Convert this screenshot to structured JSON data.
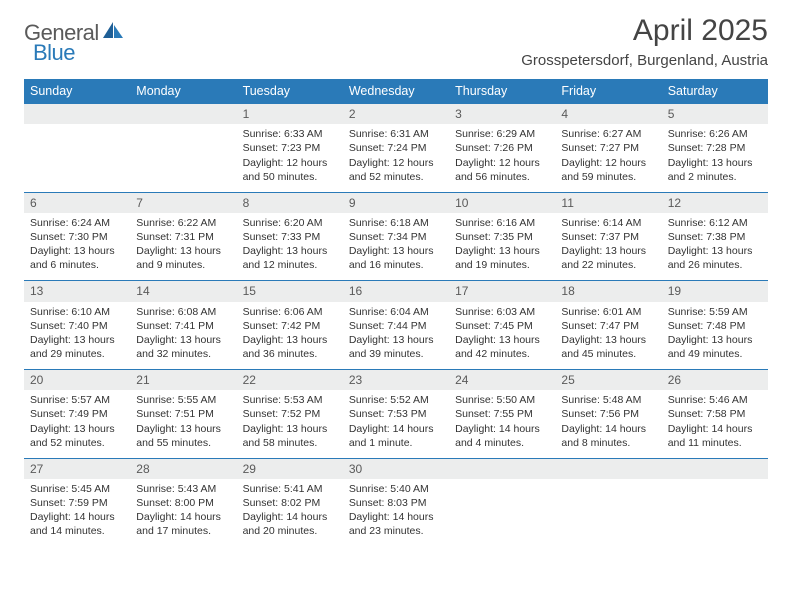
{
  "logo": {
    "word1": "General",
    "word2": "Blue"
  },
  "title": "April 2025",
  "location": "Grosspetersdorf, Burgenland, Austria",
  "colors": {
    "accent": "#2a7ab8",
    "header_bg": "#2a7ab8",
    "header_text": "#ffffff",
    "daynum_bg": "#eceded",
    "text": "#333333",
    "muted": "#5a5a5a",
    "page_bg": "#ffffff"
  },
  "typography": {
    "title_fontsize": 30,
    "location_fontsize": 15,
    "header_fontsize": 12.5,
    "cell_fontsize": 10.5,
    "logo_fontsize": 22
  },
  "weekdays": [
    "Sunday",
    "Monday",
    "Tuesday",
    "Wednesday",
    "Thursday",
    "Friday",
    "Saturday"
  ],
  "weeks": [
    {
      "nums": [
        "",
        "",
        "1",
        "2",
        "3",
        "4",
        "5"
      ],
      "cells": [
        {
          "empty": true
        },
        {
          "empty": true
        },
        {
          "sunrise": "Sunrise: 6:33 AM",
          "sunset": "Sunset: 7:23 PM",
          "day1": "Daylight: 12 hours",
          "day2": "and 50 minutes."
        },
        {
          "sunrise": "Sunrise: 6:31 AM",
          "sunset": "Sunset: 7:24 PM",
          "day1": "Daylight: 12 hours",
          "day2": "and 52 minutes."
        },
        {
          "sunrise": "Sunrise: 6:29 AM",
          "sunset": "Sunset: 7:26 PM",
          "day1": "Daylight: 12 hours",
          "day2": "and 56 minutes."
        },
        {
          "sunrise": "Sunrise: 6:27 AM",
          "sunset": "Sunset: 7:27 PM",
          "day1": "Daylight: 12 hours",
          "day2": "and 59 minutes."
        },
        {
          "sunrise": "Sunrise: 6:26 AM",
          "sunset": "Sunset: 7:28 PM",
          "day1": "Daylight: 13 hours",
          "day2": "and 2 minutes."
        }
      ]
    },
    {
      "nums": [
        "6",
        "7",
        "8",
        "9",
        "10",
        "11",
        "12"
      ],
      "cells": [
        {
          "sunrise": "Sunrise: 6:24 AM",
          "sunset": "Sunset: 7:30 PM",
          "day1": "Daylight: 13 hours",
          "day2": "and 6 minutes."
        },
        {
          "sunrise": "Sunrise: 6:22 AM",
          "sunset": "Sunset: 7:31 PM",
          "day1": "Daylight: 13 hours",
          "day2": "and 9 minutes."
        },
        {
          "sunrise": "Sunrise: 6:20 AM",
          "sunset": "Sunset: 7:33 PM",
          "day1": "Daylight: 13 hours",
          "day2": "and 12 minutes."
        },
        {
          "sunrise": "Sunrise: 6:18 AM",
          "sunset": "Sunset: 7:34 PM",
          "day1": "Daylight: 13 hours",
          "day2": "and 16 minutes."
        },
        {
          "sunrise": "Sunrise: 6:16 AM",
          "sunset": "Sunset: 7:35 PM",
          "day1": "Daylight: 13 hours",
          "day2": "and 19 minutes."
        },
        {
          "sunrise": "Sunrise: 6:14 AM",
          "sunset": "Sunset: 7:37 PM",
          "day1": "Daylight: 13 hours",
          "day2": "and 22 minutes."
        },
        {
          "sunrise": "Sunrise: 6:12 AM",
          "sunset": "Sunset: 7:38 PM",
          "day1": "Daylight: 13 hours",
          "day2": "and 26 minutes."
        }
      ]
    },
    {
      "nums": [
        "13",
        "14",
        "15",
        "16",
        "17",
        "18",
        "19"
      ],
      "cells": [
        {
          "sunrise": "Sunrise: 6:10 AM",
          "sunset": "Sunset: 7:40 PM",
          "day1": "Daylight: 13 hours",
          "day2": "and 29 minutes."
        },
        {
          "sunrise": "Sunrise: 6:08 AM",
          "sunset": "Sunset: 7:41 PM",
          "day1": "Daylight: 13 hours",
          "day2": "and 32 minutes."
        },
        {
          "sunrise": "Sunrise: 6:06 AM",
          "sunset": "Sunset: 7:42 PM",
          "day1": "Daylight: 13 hours",
          "day2": "and 36 minutes."
        },
        {
          "sunrise": "Sunrise: 6:04 AM",
          "sunset": "Sunset: 7:44 PM",
          "day1": "Daylight: 13 hours",
          "day2": "and 39 minutes."
        },
        {
          "sunrise": "Sunrise: 6:03 AM",
          "sunset": "Sunset: 7:45 PM",
          "day1": "Daylight: 13 hours",
          "day2": "and 42 minutes."
        },
        {
          "sunrise": "Sunrise: 6:01 AM",
          "sunset": "Sunset: 7:47 PM",
          "day1": "Daylight: 13 hours",
          "day2": "and 45 minutes."
        },
        {
          "sunrise": "Sunrise: 5:59 AM",
          "sunset": "Sunset: 7:48 PM",
          "day1": "Daylight: 13 hours",
          "day2": "and 49 minutes."
        }
      ]
    },
    {
      "nums": [
        "20",
        "21",
        "22",
        "23",
        "24",
        "25",
        "26"
      ],
      "cells": [
        {
          "sunrise": "Sunrise: 5:57 AM",
          "sunset": "Sunset: 7:49 PM",
          "day1": "Daylight: 13 hours",
          "day2": "and 52 minutes."
        },
        {
          "sunrise": "Sunrise: 5:55 AM",
          "sunset": "Sunset: 7:51 PM",
          "day1": "Daylight: 13 hours",
          "day2": "and 55 minutes."
        },
        {
          "sunrise": "Sunrise: 5:53 AM",
          "sunset": "Sunset: 7:52 PM",
          "day1": "Daylight: 13 hours",
          "day2": "and 58 minutes."
        },
        {
          "sunrise": "Sunrise: 5:52 AM",
          "sunset": "Sunset: 7:53 PM",
          "day1": "Daylight: 14 hours",
          "day2": "and 1 minute."
        },
        {
          "sunrise": "Sunrise: 5:50 AM",
          "sunset": "Sunset: 7:55 PM",
          "day1": "Daylight: 14 hours",
          "day2": "and 4 minutes."
        },
        {
          "sunrise": "Sunrise: 5:48 AM",
          "sunset": "Sunset: 7:56 PM",
          "day1": "Daylight: 14 hours",
          "day2": "and 8 minutes."
        },
        {
          "sunrise": "Sunrise: 5:46 AM",
          "sunset": "Sunset: 7:58 PM",
          "day1": "Daylight: 14 hours",
          "day2": "and 11 minutes."
        }
      ]
    },
    {
      "nums": [
        "27",
        "28",
        "29",
        "30",
        "",
        "",
        ""
      ],
      "cells": [
        {
          "sunrise": "Sunrise: 5:45 AM",
          "sunset": "Sunset: 7:59 PM",
          "day1": "Daylight: 14 hours",
          "day2": "and 14 minutes."
        },
        {
          "sunrise": "Sunrise: 5:43 AM",
          "sunset": "Sunset: 8:00 PM",
          "day1": "Daylight: 14 hours",
          "day2": "and 17 minutes."
        },
        {
          "sunrise": "Sunrise: 5:41 AM",
          "sunset": "Sunset: 8:02 PM",
          "day1": "Daylight: 14 hours",
          "day2": "and 20 minutes."
        },
        {
          "sunrise": "Sunrise: 5:40 AM",
          "sunset": "Sunset: 8:03 PM",
          "day1": "Daylight: 14 hours",
          "day2": "and 23 minutes."
        },
        {
          "empty": true
        },
        {
          "empty": true
        },
        {
          "empty": true
        }
      ]
    }
  ]
}
